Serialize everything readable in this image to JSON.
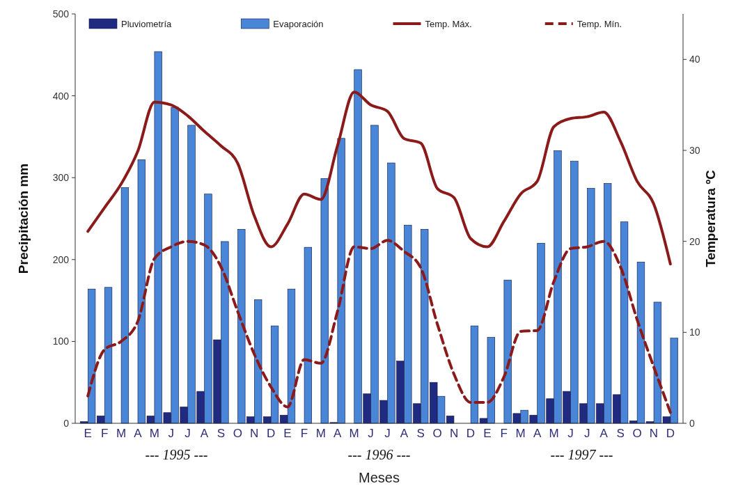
{
  "chart_data": {
    "type": "bar",
    "xlabel": "Meses",
    "ylabel": "Precipitación mm",
    "y2label": "Temperatura ºC",
    "categories": [
      "E",
      "F",
      "M",
      "A",
      "M",
      "J",
      "J",
      "A",
      "S",
      "O",
      "N",
      "D",
      "E",
      "F",
      "M",
      "A",
      "M",
      "J",
      "J",
      "A",
      "S",
      "O",
      "N",
      "D",
      "E",
      "F",
      "M",
      "A",
      "M",
      "J",
      "J",
      "A",
      "S",
      "O",
      "N",
      "D"
    ],
    "series": [
      {
        "name": "Pluviometría",
        "color": "#1f2a80",
        "values": [
          2,
          9,
          0,
          0,
          9,
          13,
          20,
          39,
          102,
          0,
          8,
          8,
          10,
          0,
          0,
          1,
          0,
          36,
          28,
          76,
          24,
          50,
          9,
          0,
          6,
          0,
          12,
          10,
          30,
          39,
          24,
          24,
          35,
          3,
          2,
          8
        ]
      },
      {
        "name": "Evaporación",
        "color": "#4a86d8",
        "values": [
          164,
          166,
          288,
          322,
          454,
          386,
          364,
          280,
          222,
          237,
          151,
          119,
          164,
          215,
          299,
          348,
          432,
          364,
          318,
          242,
          237,
          33,
          0,
          119,
          105,
          175,
          16,
          220,
          333,
          320,
          287,
          293,
          246,
          197,
          148,
          104
        ]
      },
      {
        "name": "Temp. Máx.",
        "type": "line",
        "axis": "y2",
        "color": "#8b1a1a",
        "line_style": "solid",
        "values": [
          21.1,
          23.7,
          26.3,
          29.9,
          35.3,
          35.0,
          33.8,
          32.1,
          30.5,
          28.6,
          22.8,
          19.4,
          21.9,
          25.2,
          24.6,
          30.5,
          36.4,
          35.0,
          34.3,
          31.3,
          30.8,
          25.8,
          24.8,
          20.3,
          19.4,
          22.2,
          25.2,
          26.6,
          32.6,
          33.5,
          33.7,
          34.2,
          31.0,
          26.6,
          24.1,
          17.5
        ]
      },
      {
        "name": "Temp. Mín.",
        "type": "line",
        "axis": "y2",
        "color": "#8b1a1a",
        "line_style": "dashed",
        "values": [
          3.0,
          8.1,
          9.0,
          11.2,
          18.1,
          19.4,
          20.0,
          19.6,
          17.2,
          12.3,
          7.6,
          4.0,
          1.8,
          7.0,
          6.6,
          12.3,
          19.4,
          19.2,
          20.1,
          18.9,
          17.1,
          10.9,
          5.4,
          2.3,
          2.3,
          5.1,
          10.1,
          10.2,
          15.6,
          19.2,
          19.4,
          20.0,
          17.2,
          11.4,
          6.2,
          1.2
        ]
      }
    ],
    "ylim": [
      0,
      500
    ],
    "yticks": [
      0,
      100,
      200,
      300,
      400,
      500
    ],
    "y2lim": [
      0,
      45
    ],
    "y2ticks": [
      0,
      10,
      20,
      30,
      40
    ],
    "legend": "top",
    "annotations": [
      "--- 1995 ---",
      "--- 1996 ---",
      "--- 1997 ---"
    ]
  }
}
